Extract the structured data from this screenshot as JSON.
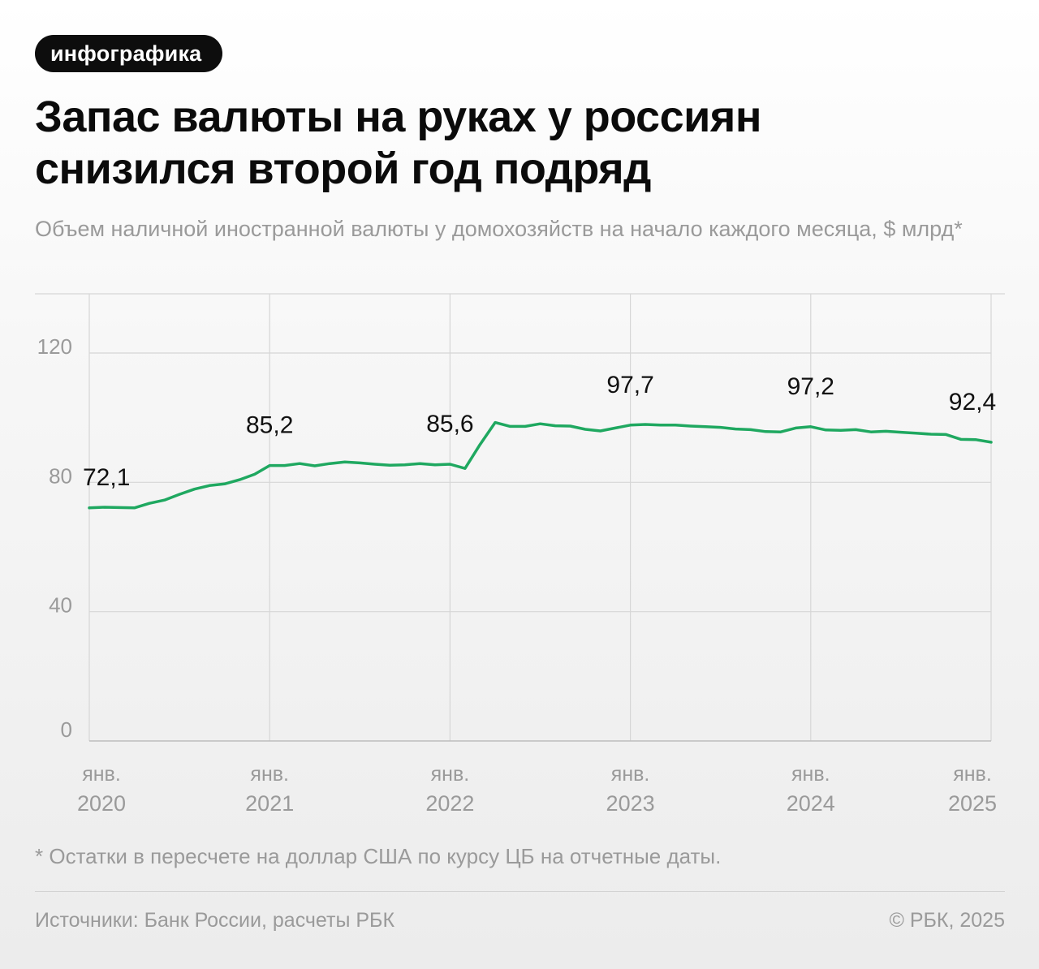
{
  "header": {
    "tag": "инфографика",
    "title": "Запас валюты на руках у россиян снизился второй год подряд",
    "subtitle": "Объем наличной иностранной валюты у домохозяйств на начало каждого месяца, $ млрд*"
  },
  "footer": {
    "footnote": "* Остатки в пересчете на доллар США по курсу ЦБ на отчетные даты.",
    "source": "Источники: Банк России, расчеты РБК",
    "copyright": "© РБК, 2025"
  },
  "colors": {
    "line": "#1fa860",
    "grid": "#d6d6d6",
    "axis_text": "#9a9a9a",
    "label_text": "#111111"
  },
  "chart_data": {
    "type": "line",
    "title": "",
    "xlabel": "",
    "ylabel": "$ млрд",
    "ylim": [
      0,
      137
    ],
    "yticks": [
      0,
      40,
      80,
      120
    ],
    "ytick_labels": [
      "0",
      "40",
      "80",
      "120"
    ],
    "grid": true,
    "x_start": "2020-01",
    "x_end": "2025-01",
    "xticks": [
      {
        "month": "янв.",
        "year": "2020"
      },
      {
        "month": "янв.",
        "year": "2021"
      },
      {
        "month": "янв.",
        "year": "2022"
      },
      {
        "month": "янв.",
        "year": "2023"
      },
      {
        "month": "янв.",
        "year": "2024"
      },
      {
        "month": "янв.",
        "year": "2025"
      }
    ],
    "series": [
      {
        "dates": [
          "2020-01",
          "2020-02",
          "2020-03",
          "2020-04",
          "2020-05",
          "2020-06",
          "2020-07",
          "2020-08",
          "2020-09",
          "2020-10",
          "2020-11",
          "2020-12",
          "2021-01",
          "2021-02",
          "2021-03",
          "2021-04",
          "2021-05",
          "2021-06",
          "2021-07",
          "2021-08",
          "2021-09",
          "2021-10",
          "2021-11",
          "2021-12",
          "2022-01",
          "2022-02",
          "2022-03",
          "2022-04",
          "2022-05",
          "2022-06",
          "2022-07",
          "2022-08",
          "2022-09",
          "2022-10",
          "2022-11",
          "2022-12",
          "2023-01",
          "2023-02",
          "2023-03",
          "2023-04",
          "2023-05",
          "2023-06",
          "2023-07",
          "2023-08",
          "2023-09",
          "2023-10",
          "2023-11",
          "2023-12",
          "2024-01",
          "2024-02",
          "2024-03",
          "2024-04",
          "2024-05",
          "2024-06",
          "2024-07",
          "2024-08",
          "2024-09",
          "2024-10",
          "2024-11",
          "2024-12",
          "2025-01"
        ],
        "values": [
          72.1,
          72.3,
          72.2,
          72.1,
          73.5,
          74.5,
          76.3,
          77.9,
          79.0,
          79.5,
          80.8,
          82.5,
          85.2,
          85.2,
          85.8,
          85.1,
          85.8,
          86.3,
          86.0,
          85.6,
          85.3,
          85.4,
          85.8,
          85.4,
          85.6,
          84.3,
          91.7,
          98.5,
          97.3,
          97.3,
          98.1,
          97.5,
          97.4,
          96.4,
          95.9,
          96.8,
          97.7,
          97.9,
          97.7,
          97.7,
          97.4,
          97.2,
          97.0,
          96.5,
          96.3,
          95.7,
          95.6,
          96.8,
          97.2,
          96.2,
          96.1,
          96.3,
          95.6,
          95.8,
          95.5,
          95.2,
          94.9,
          94.8,
          93.3,
          93.2,
          92.4
        ],
        "labels": [
          {
            "date": "2020-01",
            "value": 72.1,
            "text": "72,1"
          },
          {
            "date": "2021-01",
            "value": 85.2,
            "text": "85,2"
          },
          {
            "date": "2022-01",
            "value": 85.6,
            "text": "85,6"
          },
          {
            "date": "2023-01",
            "value": 97.7,
            "text": "97,7"
          },
          {
            "date": "2024-01",
            "value": 97.2,
            "text": "97,2"
          },
          {
            "date": "2025-01",
            "value": 92.4,
            "text": "92,4"
          }
        ]
      }
    ]
  }
}
